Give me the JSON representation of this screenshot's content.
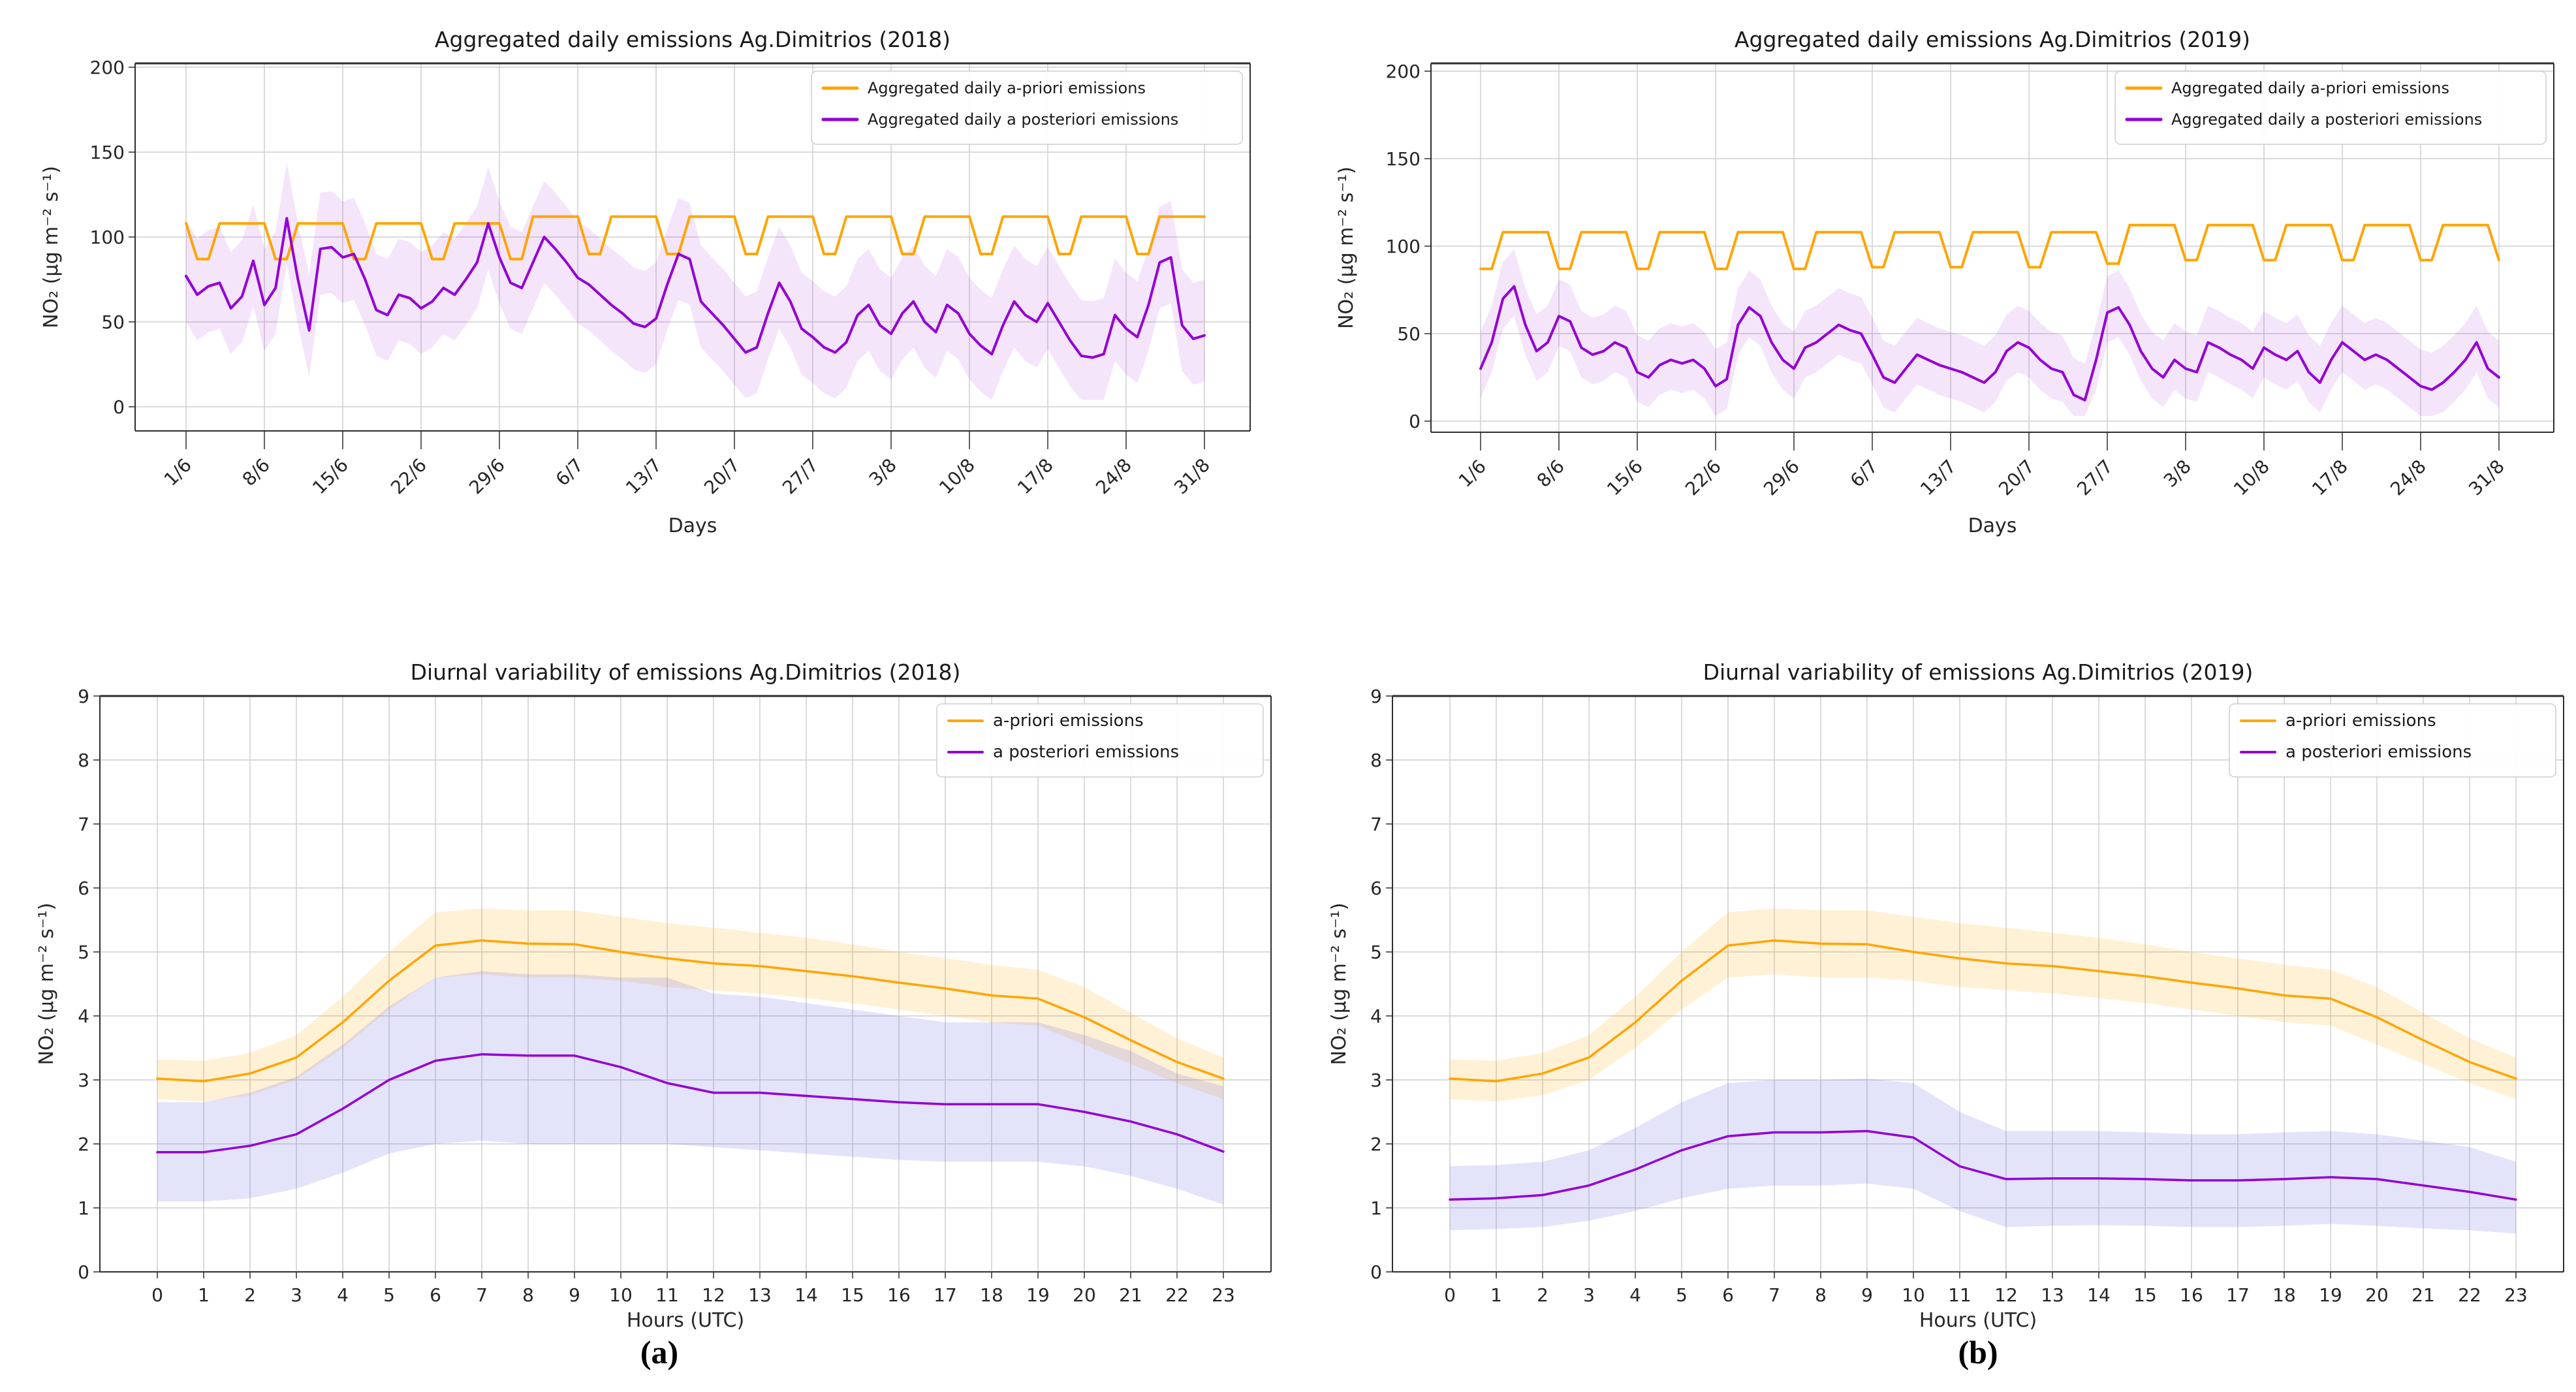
{
  "page": {
    "background": "#ffffff"
  },
  "captions": {
    "a": "(a)",
    "b": "(b)"
  },
  "colors": {
    "a_priori": "#FFA500",
    "a_posteriori": "#9400D3",
    "grid": "#cfcfcf",
    "spine": "#2e2e2e",
    "text": "#262626",
    "legend_border": "#cccccc",
    "daily_band": "rgba(148,0,211,0.10)",
    "diurnal_priori_band": "rgba(255,165,0,0.16)",
    "diurnal_posteriori_band": "rgba(100,100,225,0.18)"
  },
  "chart_data": [
    {
      "id": "daily-2018",
      "type": "line",
      "title": "Aggregated daily emissions Ag.Dimitrios (2018)",
      "xlabel": "Days",
      "ylabel": "NO₂ (μg m⁻² s⁻¹)",
      "x_tick_labels": [
        "1/6",
        "8/6",
        "15/6",
        "22/6",
        "29/6",
        "6/7",
        "13/7",
        "20/7",
        "27/7",
        "3/8",
        "10/8",
        "17/8",
        "24/8",
        "31/8"
      ],
      "x_tick_positions": [
        0,
        7,
        14,
        21,
        28,
        35,
        42,
        49,
        56,
        63,
        70,
        77,
        84,
        91
      ],
      "y_ticks": [
        0,
        50,
        100,
        150,
        200
      ],
      "ylim": [
        -14,
        202
      ],
      "grid": true,
      "legend_position": "upper right",
      "legend": [
        {
          "label": "Aggregated daily a-priori emissions",
          "color": "#FFA500"
        },
        {
          "label": "Aggregated daily a posteriori emissions",
          "color": "#9400D3"
        }
      ],
      "series": [
        {
          "name": "aggregated-daily-a-priori-emissions-2018",
          "color": "#FFA500",
          "width": 4,
          "values": [
            108,
            87,
            87,
            108,
            108,
            108,
            108,
            108,
            87,
            87,
            108,
            108,
            108,
            108,
            108,
            87,
            87,
            108,
            108,
            108,
            108,
            108,
            87,
            87,
            108,
            108,
            108,
            108,
            108,
            87,
            87,
            112,
            112,
            112,
            112,
            112,
            90,
            90,
            112,
            112,
            112,
            112,
            112,
            90,
            90,
            112,
            112,
            112,
            112,
            112,
            90,
            90,
            112,
            112,
            112,
            112,
            112,
            90,
            90,
            112,
            112,
            112,
            112,
            112,
            90,
            90,
            112,
            112,
            112,
            112,
            112,
            90,
            90,
            112,
            112,
            112,
            112,
            112,
            90,
            90,
            112,
            112,
            112,
            112,
            112,
            90,
            90,
            112,
            112,
            112,
            112,
            112
          ]
        },
        {
          "name": "aggregated-daily-a-posteriori-emissions-2018",
          "color": "#9400D3",
          "width": 4,
          "values": [
            77,
            66,
            71,
            73,
            58,
            65,
            86,
            60,
            70,
            111,
            75,
            45,
            93,
            94,
            88,
            90,
            75,
            57,
            54,
            66,
            64,
            58,
            62,
            70,
            66,
            75,
            85,
            108,
            88,
            73,
            70,
            85,
            100,
            93,
            85,
            76,
            72,
            66,
            60,
            55,
            49,
            47,
            52,
            72,
            90,
            87,
            62,
            55,
            48,
            40,
            32,
            35,
            55,
            73,
            62,
            46,
            41,
            35,
            32,
            38,
            54,
            60,
            48,
            43,
            55,
            62,
            50,
            44,
            60,
            55,
            43,
            36,
            31,
            48,
            62,
            54,
            50,
            61,
            50,
            39,
            30,
            29,
            31,
            54,
            46,
            41,
            60,
            85,
            88,
            48,
            40,
            42
          ],
          "band": {
            "type": "offset",
            "low": 27,
            "high": 33,
            "floor": 4
          },
          "band_color": "rgba(148,0,211,0.10)"
        }
      ]
    },
    {
      "id": "daily-2019",
      "type": "line",
      "title": "Aggregated daily emissions Ag.Dimitrios (2019)",
      "xlabel": "Days",
      "ylabel": "NO₂ (μg m⁻² s⁻¹)",
      "x_tick_labels": [
        "1/6",
        "8/6",
        "15/6",
        "22/6",
        "29/6",
        "6/7",
        "13/7",
        "20/7",
        "27/7",
        "3/8",
        "10/8",
        "17/8",
        "24/8",
        "31/8"
      ],
      "x_tick_positions": [
        0,
        7,
        14,
        21,
        28,
        35,
        42,
        49,
        56,
        63,
        70,
        77,
        84,
        91
      ],
      "y_ticks": [
        0,
        50,
        100,
        150,
        200
      ],
      "ylim": [
        -6,
        204
      ],
      "grid": true,
      "legend_position": "upper right",
      "legend": [
        {
          "label": "Aggregated daily a-priori emissions",
          "color": "#FFA500"
        },
        {
          "label": "Aggregated daily a posteriori emissions",
          "color": "#9400D3"
        }
      ],
      "series": [
        {
          "name": "aggregated-daily-a-priori-emissions-2019",
          "color": "#FFA500",
          "width": 4,
          "values": [
            87,
            87,
            108,
            108,
            108,
            108,
            108,
            87,
            87,
            108,
            108,
            108,
            108,
            108,
            87,
            87,
            108,
            108,
            108,
            108,
            108,
            87,
            87,
            108,
            108,
            108,
            108,
            108,
            87,
            87,
            108,
            108,
            108,
            108,
            108,
            88,
            88,
            108,
            108,
            108,
            108,
            108,
            88,
            88,
            108,
            108,
            108,
            108,
            108,
            88,
            88,
            108,
            108,
            108,
            108,
            108,
            90,
            90,
            112,
            112,
            112,
            112,
            112,
            92,
            92,
            112,
            112,
            112,
            112,
            112,
            92,
            92,
            112,
            112,
            112,
            112,
            112,
            92,
            92,
            112,
            112,
            112,
            112,
            112,
            92,
            92,
            112,
            112,
            112,
            112,
            112,
            92
          ]
        },
        {
          "name": "aggregated-daily-a-posteriori-emissions-2019",
          "color": "#9400D3",
          "width": 4,
          "values": [
            30,
            45,
            70,
            77,
            55,
            40,
            45,
            60,
            57,
            42,
            38,
            40,
            45,
            42,
            28,
            25,
            32,
            35,
            33,
            35,
            30,
            20,
            24,
            55,
            65,
            60,
            45,
            35,
            30,
            42,
            45,
            50,
            55,
            52,
            50,
            38,
            25,
            22,
            30,
            38,
            35,
            32,
            30,
            28,
            25,
            22,
            28,
            40,
            45,
            42,
            35,
            30,
            28,
            15,
            12,
            35,
            62,
            65,
            55,
            40,
            30,
            25,
            35,
            30,
            28,
            45,
            42,
            38,
            35,
            30,
            42,
            38,
            35,
            40,
            28,
            22,
            35,
            45,
            40,
            35,
            38,
            35,
            30,
            25,
            20,
            18,
            22,
            28,
            35,
            45,
            30,
            25
          ],
          "band": {
            "type": "offset",
            "low": 17,
            "high": 21,
            "floor": 3
          },
          "band_color": "rgba(148,0,211,0.10)"
        }
      ]
    },
    {
      "id": "diurnal-2018",
      "type": "line",
      "title": "Diurnal variability of emissions Ag.Dimitrios (2018)",
      "xlabel": "Hours (UTC)",
      "ylabel": "NO₂ (μg m⁻² s⁻¹)",
      "x_tick_labels": [
        "0",
        "1",
        "2",
        "3",
        "4",
        "5",
        "6",
        "7",
        "8",
        "9",
        "10",
        "11",
        "12",
        "13",
        "14",
        "15",
        "16",
        "17",
        "18",
        "19",
        "20",
        "21",
        "22",
        "23"
      ],
      "x_tick_positions": [
        0,
        1,
        2,
        3,
        4,
        5,
        6,
        7,
        8,
        9,
        10,
        11,
        12,
        13,
        14,
        15,
        16,
        17,
        18,
        19,
        20,
        21,
        22,
        23
      ],
      "y_ticks": [
        0,
        1,
        2,
        3,
        4,
        5,
        6,
        7,
        8,
        9
      ],
      "ylim": [
        0,
        9
      ],
      "grid": true,
      "legend_position": "upper right",
      "legend": [
        {
          "label": "a-priori emissions",
          "color": "#FFA500"
        },
        {
          "label": "a posteriori emissions",
          "color": "#9400D3"
        }
      ],
      "series": [
        {
          "name": "a-priori-emissions-2018",
          "color": "#FFA500",
          "width": 3.5,
          "values": [
            3.02,
            2.98,
            3.1,
            3.35,
            3.9,
            4.55,
            5.1,
            5.18,
            5.13,
            5.12,
            5.0,
            4.9,
            4.82,
            4.78,
            4.7,
            4.62,
            4.52,
            4.43,
            4.32,
            4.27,
            3.98,
            3.62,
            3.28,
            3.02
          ],
          "band": {
            "type": "range",
            "low": [
              2.7,
              2.66,
              2.76,
              3.0,
              3.5,
              4.1,
              4.6,
              4.65,
              4.6,
              4.6,
              4.55,
              4.45,
              4.4,
              4.35,
              4.28,
              4.2,
              4.1,
              4.0,
              3.9,
              3.85,
              3.55,
              3.25,
              2.95,
              2.7
            ],
            "high": [
              3.32,
              3.3,
              3.42,
              3.7,
              4.3,
              5.0,
              5.62,
              5.68,
              5.65,
              5.65,
              5.55,
              5.45,
              5.38,
              5.3,
              5.22,
              5.12,
              5.0,
              4.9,
              4.8,
              4.72,
              4.45,
              4.05,
              3.65,
              3.35
            ]
          },
          "band_color": "rgba(255,165,0,0.16)"
        },
        {
          "name": "a-posteriori-emissions-2018",
          "color": "#9400D3",
          "width": 3.5,
          "values": [
            1.87,
            1.87,
            1.97,
            2.15,
            2.55,
            3.0,
            3.3,
            3.4,
            3.38,
            3.38,
            3.2,
            2.95,
            2.8,
            2.8,
            2.75,
            2.7,
            2.65,
            2.62,
            2.62,
            2.62,
            2.5,
            2.35,
            2.15,
            1.88
          ],
          "band": {
            "type": "range",
            "low": [
              1.1,
              1.1,
              1.15,
              1.3,
              1.55,
              1.85,
              2.0,
              2.05,
              2.0,
              2.0,
              2.0,
              2.0,
              1.95,
              1.9,
              1.85,
              1.8,
              1.75,
              1.72,
              1.72,
              1.72,
              1.65,
              1.5,
              1.3,
              1.05
            ],
            "high": [
              2.65,
              2.65,
              2.8,
              3.05,
              3.55,
              4.15,
              4.6,
              4.7,
              4.65,
              4.65,
              4.6,
              4.6,
              4.35,
              4.3,
              4.2,
              4.1,
              4.0,
              3.9,
              3.9,
              3.9,
              3.7,
              3.45,
              3.1,
              2.9
            ]
          },
          "band_color": "rgba(100,100,225,0.18)"
        }
      ]
    },
    {
      "id": "diurnal-2019",
      "type": "line",
      "title": "Diurnal variability of emissions Ag.Dimitrios (2019)",
      "xlabel": "Hours (UTC)",
      "ylabel": "NO₂ (μg m⁻² s⁻¹)",
      "x_tick_labels": [
        "0",
        "1",
        "2",
        "3",
        "4",
        "5",
        "6",
        "7",
        "8",
        "9",
        "10",
        "11",
        "12",
        "13",
        "14",
        "15",
        "16",
        "17",
        "18",
        "19",
        "20",
        "21",
        "22",
        "23"
      ],
      "x_tick_positions": [
        0,
        1,
        2,
        3,
        4,
        5,
        6,
        7,
        8,
        9,
        10,
        11,
        12,
        13,
        14,
        15,
        16,
        17,
        18,
        19,
        20,
        21,
        22,
        23
      ],
      "y_ticks": [
        0,
        1,
        2,
        3,
        4,
        5,
        6,
        7,
        8,
        9
      ],
      "ylim": [
        0,
        9
      ],
      "grid": true,
      "legend_position": "upper right",
      "legend": [
        {
          "label": "a-priori emissions",
          "color": "#FFA500"
        },
        {
          "label": "a posteriori emissions",
          "color": "#9400D3"
        }
      ],
      "series": [
        {
          "name": "a-priori-emissions-2019",
          "color": "#FFA500",
          "width": 3.5,
          "values": [
            3.02,
            2.98,
            3.1,
            3.35,
            3.9,
            4.55,
            5.1,
            5.18,
            5.13,
            5.12,
            5.0,
            4.9,
            4.82,
            4.78,
            4.7,
            4.62,
            4.52,
            4.43,
            4.32,
            4.27,
            3.98,
            3.62,
            3.28,
            3.02
          ],
          "band": {
            "type": "range",
            "low": [
              2.7,
              2.66,
              2.76,
              3.0,
              3.5,
              4.1,
              4.6,
              4.65,
              4.6,
              4.6,
              4.55,
              4.45,
              4.4,
              4.35,
              4.28,
              4.2,
              4.1,
              4.0,
              3.9,
              3.85,
              3.55,
              3.25,
              2.95,
              2.7
            ],
            "high": [
              3.32,
              3.3,
              3.42,
              3.7,
              4.3,
              5.0,
              5.62,
              5.68,
              5.65,
              5.65,
              5.55,
              5.45,
              5.38,
              5.3,
              5.22,
              5.12,
              5.0,
              4.9,
              4.8,
              4.72,
              4.45,
              4.05,
              3.65,
              3.35
            ]
          },
          "band_color": "rgba(255,165,0,0.16)"
        },
        {
          "name": "a-posteriori-emissions-2019",
          "color": "#9400D3",
          "width": 3.5,
          "values": [
            1.13,
            1.15,
            1.2,
            1.35,
            1.6,
            1.9,
            2.12,
            2.18,
            2.18,
            2.2,
            2.1,
            1.65,
            1.45,
            1.46,
            1.46,
            1.45,
            1.43,
            1.43,
            1.45,
            1.48,
            1.45,
            1.35,
            1.25,
            1.13
          ],
          "band": {
            "type": "range",
            "low": [
              0.65,
              0.67,
              0.7,
              0.8,
              0.95,
              1.15,
              1.3,
              1.35,
              1.35,
              1.38,
              1.3,
              0.95,
              0.7,
              0.72,
              0.73,
              0.72,
              0.7,
              0.7,
              0.72,
              0.75,
              0.72,
              0.68,
              0.65,
              0.6
            ],
            "high": [
              1.65,
              1.67,
              1.72,
              1.9,
              2.25,
              2.65,
              2.95,
              3.0,
              3.0,
              3.02,
              2.95,
              2.5,
              2.2,
              2.2,
              2.2,
              2.18,
              2.15,
              2.15,
              2.18,
              2.2,
              2.15,
              2.05,
              1.95,
              1.72
            ]
          },
          "band_color": "rgba(100,100,225,0.18)"
        }
      ]
    }
  ]
}
